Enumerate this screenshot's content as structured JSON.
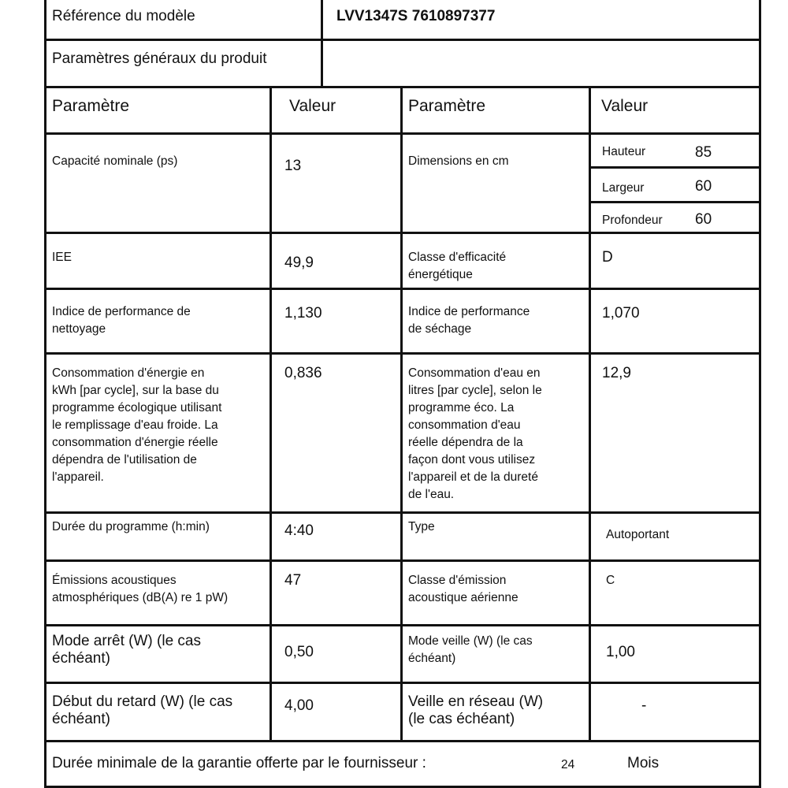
{
  "header": {
    "model_label": "Référence du modèle",
    "model_value": "LVV1347S 7610897377",
    "general_label": "Paramètres généraux du produit"
  },
  "columns": {
    "param_1": "Paramètre",
    "value_1": "Valeur",
    "param_2": "Paramètre",
    "value_2": "Valeur"
  },
  "rows": [
    {
      "left_param": "Capacité nominale (ps)",
      "left_value": "13",
      "right_param": "Dimensions en cm",
      "right_value": ""
    },
    {
      "left_param": "IEE",
      "left_value": "49,9",
      "right_param": "Classe d'efficacité\nénergétique",
      "right_value": "D"
    },
    {
      "left_param": "Indice de performance de\nnettoyage",
      "left_value": "1,130",
      "right_param": "Indice de performance\nde séchage",
      "right_value": "1,070"
    },
    {
      "left_param": "Consommation d'énergie en\nkWh [par cycle], sur la base du\nprogramme écologique utilisant\nle remplissage d'eau froide. La\nconsommation d'énergie réelle\ndépendra de l'utilisation de\nl'appareil.",
      "left_value": "0,836",
      "right_param": "Consommation d'eau en\nlitres [par cycle], selon le\nprogramme éco. La\nconsommation d'eau\nréelle dépendra de la\nfaçon dont vous utilisez\nl'appareil et de la dureté\nde l'eau.",
      "right_value": "12,9"
    },
    {
      "left_param": "Durée du programme (h:min)",
      "left_value": "4:40",
      "right_param": "Type",
      "right_value": "Autoportant"
    },
    {
      "left_param": "Émissions acoustiques\natmosphériques (dB(A) re 1 pW)",
      "left_value": "47",
      "right_param": "Classe d'émission\nacoustique aérienne",
      "right_value": "C"
    },
    {
      "left_param": "Mode arrêt (W) (le cas\néchéant)",
      "left_value": "0,50",
      "right_param": "Mode veille (W) (le cas\néchéant)",
      "right_value": "1,00"
    },
    {
      "left_param": "Début du retard (W) (le cas\néchéant)",
      "left_value": "4,00",
      "right_param": "Veille en réseau (W)\n(le cas échéant)",
      "right_value": "-"
    }
  ],
  "dimensions": [
    {
      "label": "Hauteur",
      "value": "85"
    },
    {
      "label": "Largeur",
      "value": "60"
    },
    {
      "label": "Profondeur",
      "value": "60"
    }
  ],
  "warranty": {
    "label": "Durée minimale de la garantie offerte par le fournisseur :",
    "value": "24",
    "unit": "Mois"
  }
}
